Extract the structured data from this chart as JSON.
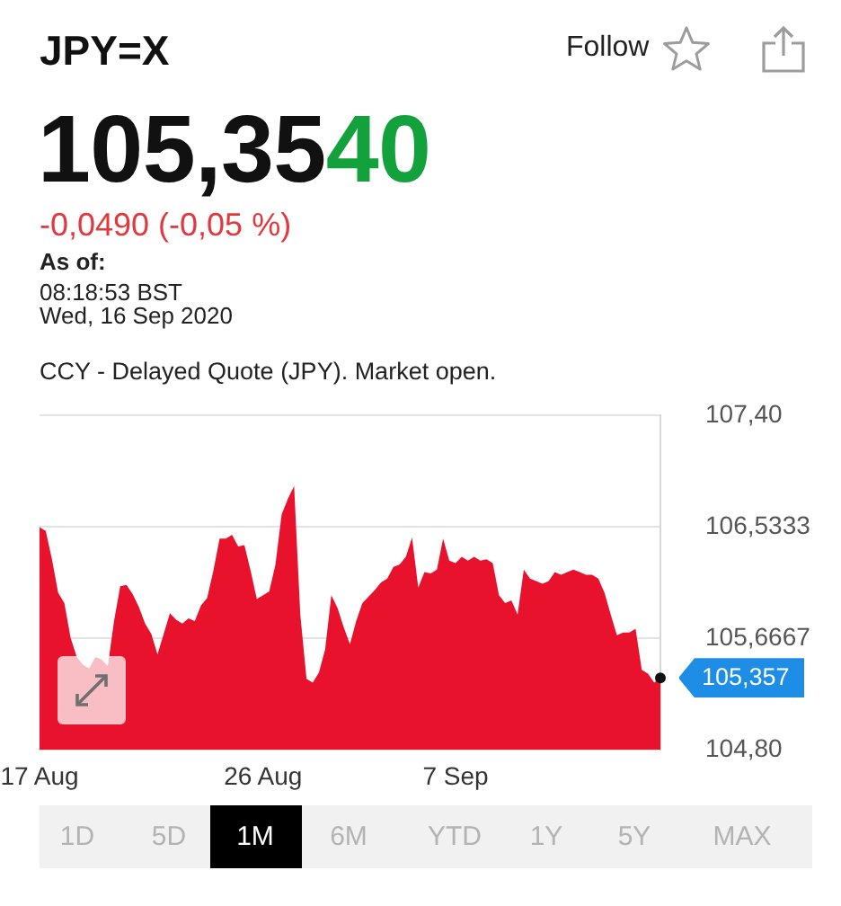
{
  "chart_data": {
    "type": "area",
    "title": "JPY=X",
    "subtitle": "CCY - Delayed Quote (JPY). Market open.",
    "categories": [
      "17 Aug",
      null,
      null,
      null,
      null,
      null,
      null,
      null,
      null,
      null,
      null,
      null,
      null,
      null,
      null,
      null,
      null,
      null,
      null,
      null,
      null,
      null,
      null,
      null,
      null,
      null,
      null,
      null,
      null,
      null,
      null,
      null,
      null,
      null,
      null,
      null,
      "26 Aug",
      null,
      null,
      null,
      null,
      null,
      null,
      null,
      null,
      null,
      null,
      null,
      null,
      null,
      null,
      null,
      null,
      null,
      null,
      null,
      null,
      null,
      null,
      null,
      null,
      null,
      null,
      null,
      null,
      null,
      null,
      "7 Sep",
      null,
      null,
      null,
      null,
      null,
      null,
      null,
      null,
      null,
      null,
      null,
      null,
      null,
      null,
      null,
      null,
      null,
      null,
      null,
      null,
      null,
      null,
      null,
      null,
      null,
      null,
      null,
      null,
      null,
      null,
      null,
      null,
      null
    ],
    "values": [
      106.53,
      106.5,
      106.28,
      106.02,
      105.94,
      105.67,
      105.52,
      105.46,
      105.43,
      105.52,
      105.5,
      105.45,
      105.8,
      106.07,
      106.08,
      106.01,
      105.91,
      105.78,
      105.7,
      105.54,
      105.7,
      105.86,
      105.81,
      105.78,
      105.82,
      105.8,
      105.92,
      105.98,
      106.19,
      106.44,
      106.44,
      106.47,
      106.38,
      106.39,
      106.19,
      105.97,
      106.0,
      106.03,
      106.24,
      106.63,
      106.75,
      106.85,
      105.85,
      105.35,
      105.32,
      105.4,
      105.58,
      106.0,
      105.9,
      105.75,
      105.62,
      105.8,
      105.94,
      105.99,
      106.04,
      106.1,
      106.13,
      106.22,
      106.24,
      106.3,
      106.45,
      106.06,
      106.18,
      106.17,
      106.2,
      106.44,
      106.27,
      106.25,
      106.3,
      106.27,
      106.3,
      106.27,
      106.28,
      106.25,
      106.0,
      105.94,
      105.96,
      105.85,
      106.2,
      106.13,
      106.11,
      106.09,
      106.11,
      106.18,
      106.16,
      106.18,
      106.2,
      106.18,
      106.16,
      106.16,
      106.13,
      106.02,
      105.85,
      105.69,
      105.71,
      105.71,
      105.74,
      105.42,
      105.39,
      105.32,
      105.357
    ],
    "color": "#e8122d",
    "ylim": [
      104.8,
      107.4
    ],
    "yticks": [
      {
        "value": 104.8,
        "label": "104,80"
      },
      {
        "value": 105.6667,
        "label": "105,6667"
      },
      {
        "value": 106.5333,
        "label": "106,5333"
      },
      {
        "value": 107.4,
        "label": "107,40"
      }
    ],
    "grid": "y",
    "annotations": [
      "Follow",
      "105,3540",
      "-0,0490 (-0,05 %)",
      "As of:",
      "08:18:53 BST",
      "Wed, 16 Sep 2020",
      "105,357",
      "1D",
      "5D",
      "1M",
      "6M",
      "YTD",
      "1Y",
      "5Y",
      "MAX"
    ]
  }
}
